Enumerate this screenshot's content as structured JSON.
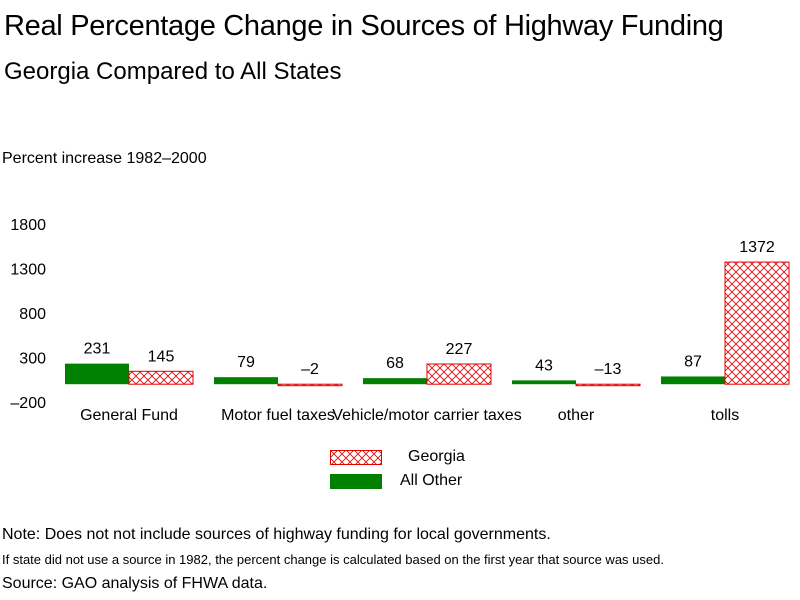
{
  "header": {
    "title": "Real Percentage Change in Sources of Highway Funding",
    "subtitle": "Georgia Compared to All States"
  },
  "colors": {
    "all_other": "#008000",
    "georgia": "#e00000"
  },
  "chart_data": {
    "type": "bar",
    "title": "Real Percentage Change in Sources of Highway Funding",
    "subtitle": "Georgia Compared to All States",
    "ylabel": "Percent increase 1982–2000",
    "xlabel": "",
    "ylim": [
      -200,
      1800
    ],
    "yticks": [
      1800,
      1300,
      800,
      300,
      -200
    ],
    "ytick_labels": [
      "1800",
      "1300",
      "800",
      "300",
      "–200"
    ],
    "categories": [
      "General Fund",
      "Motor fuel taxes",
      "Vehicle/motor carrier taxes",
      "other",
      "tolls"
    ],
    "series": [
      {
        "name": "All Other",
        "values": [
          231,
          79,
          68,
          43,
          87
        ],
        "labels": [
          "231",
          "79",
          "68",
          "43",
          "87"
        ],
        "fill": "solid"
      },
      {
        "name": "Georgia",
        "values": [
          145,
          -2,
          227,
          -13,
          1372
        ],
        "labels": [
          "145",
          "–2",
          "227",
          "–13",
          "1372"
        ],
        "fill": "crosshatch"
      }
    ],
    "legend": {
      "placement": "bottom-center",
      "entries": [
        "Georgia",
        "All Other"
      ]
    },
    "grid": false
  },
  "footer": {
    "note1": "Note: Does not not include sources of highway funding for local governments.",
    "note2": "If state did not use a source in 1982, the percent change is calculated based on the first year that source was used.",
    "source": "Source: GAO analysis of FHWA data."
  }
}
